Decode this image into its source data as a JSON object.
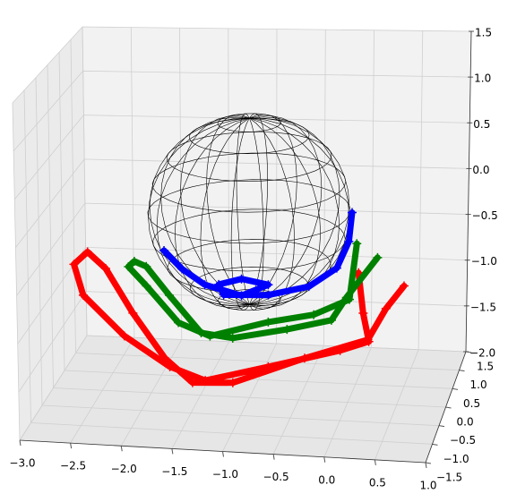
{
  "chart_data": {
    "type": "line3d",
    "xlim": [
      -3,
      1
    ],
    "ylim": [
      -1.5,
      1.5
    ],
    "zlim": [
      -2,
      1.5
    ],
    "xticks": [
      {
        "value": -3,
        "label": "−3.0"
      },
      {
        "value": -2.5,
        "label": "−2.5"
      },
      {
        "value": -2,
        "label": "−2.0"
      },
      {
        "value": -1.5,
        "label": "−1.5"
      },
      {
        "value": -1,
        "label": "−1.0"
      },
      {
        "value": -0.5,
        "label": "−0.5"
      },
      {
        "value": 0,
        "label": "0.0"
      },
      0.5,
      {
        "value": 1,
        "label": "1.0"
      }
    ],
    "yticks": [
      {
        "value": -1.5,
        "label": "−1.5"
      },
      {
        "value": -1,
        "label": "−1.0"
      },
      {
        "value": -0.5,
        "label": "−0.5"
      },
      {
        "value": 0,
        "label": "0.0"
      },
      0.5,
      {
        "value": 1,
        "label": "1.0"
      },
      1.5
    ],
    "zticks": [
      {
        "value": -2,
        "label": "−2.0"
      },
      {
        "value": -1.5,
        "label": "−1.5"
      },
      {
        "value": -1,
        "label": "−1.0"
      },
      {
        "value": -0.5,
        "label": "−0.5"
      },
      {
        "value": 0,
        "label": "0.0"
      },
      0.5,
      {
        "value": 1,
        "label": "1.0"
      },
      1.5
    ],
    "grid": true,
    "sphere": {
      "center": [
        -1,
        0,
        0
      ],
      "radius": 1,
      "color": "#000000"
    },
    "series": [
      {
        "color": "#ff0000",
        "x": [
          0.1,
          0.15,
          0.21,
          -0.08,
          -0.81,
          -1.45,
          -1.81,
          -2.27,
          -2.68,
          -2.77,
          -2.63,
          -2.45,
          -2.18,
          -1.86,
          -1.58,
          -1.17,
          -0.44,
          0.2,
          0.38,
          0.56
        ],
        "y": [
          0,
          0,
          0,
          0,
          0,
          0,
          0,
          0,
          0,
          0,
          0,
          0,
          0,
          0,
          0,
          0,
          0,
          0,
          0,
          0
        ],
        "z": [
          -0.61,
          -1.04,
          -1.34,
          -1.45,
          -1.66,
          -1.84,
          -1.71,
          -1.4,
          -0.98,
          -0.65,
          -0.51,
          -0.68,
          -1.15,
          -1.62,
          -1.87,
          -1.85,
          -1.55,
          -1.32,
          -0.98,
          -0.73
        ]
      },
      {
        "color": "#008000",
        "x": [
          0.08,
          0.01,
          -0.35,
          -0.81,
          -1.4,
          -1.72,
          -2.04,
          -2.22,
          -2.16,
          -2.04,
          -1.81,
          -1.49,
          -1.17,
          -0.62,
          -0.17,
          -0.02,
          0.29
        ],
        "y": [
          0,
          0,
          0,
          0,
          0,
          0,
          0,
          0,
          0,
          0,
          0,
          0,
          0,
          0,
          0,
          0,
          0
        ],
        "z": [
          -0.3,
          -0.9,
          -1.08,
          -1.18,
          -1.36,
          -1.23,
          -0.85,
          -0.65,
          -0.59,
          -0.64,
          -0.94,
          -1.33,
          -1.37,
          -1.25,
          -1.13,
          -0.88,
          -0.44
        ]
      },
      {
        "color": "#0000ff",
        "x": [
          0.03,
          0.0,
          -0.12,
          -0.4,
          -0.81,
          -1.26,
          -1.31,
          -1.08,
          -0.81,
          -1.08,
          -1.45,
          -1.68,
          -1.86
        ],
        "y": [
          0,
          0,
          0,
          0,
          0,
          0,
          0,
          0,
          0,
          0,
          0,
          0,
          0
        ],
        "z": [
          0.03,
          -0.28,
          -0.57,
          -0.78,
          -0.89,
          -0.91,
          -0.8,
          -0.73,
          -0.78,
          -0.91,
          -0.81,
          -0.65,
          -0.46
        ]
      }
    ]
  }
}
